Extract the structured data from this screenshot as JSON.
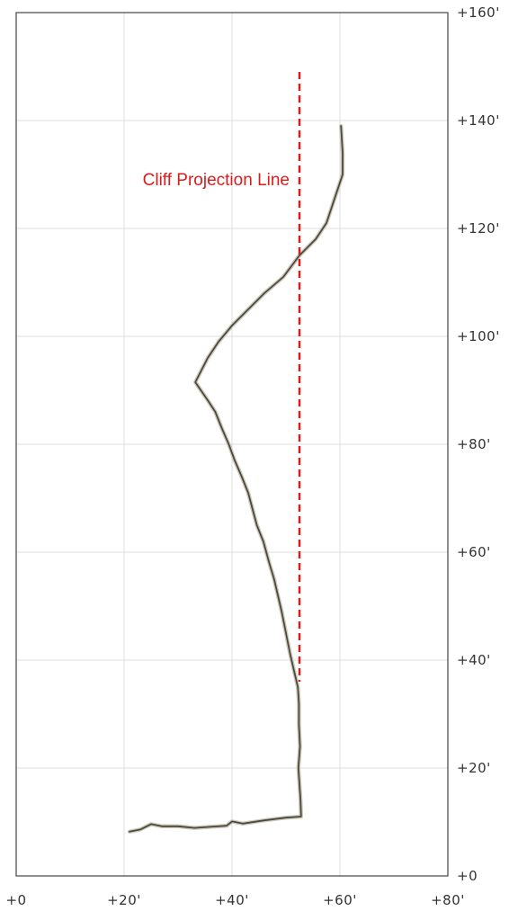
{
  "chart_data": {
    "type": "line",
    "x_ticks": [
      "+0",
      "+20'",
      "+40'",
      "+60'",
      "+80'"
    ],
    "y_ticks": [
      "+0",
      "+20'",
      "+40'",
      "+60'",
      "+80'",
      "+100'",
      "+120'",
      "+140'",
      "+160'"
    ],
    "xlim": [
      0,
      80
    ],
    "ylim": [
      0,
      160
    ],
    "grid": true,
    "series": [
      {
        "color": "#4a4a40",
        "points": [
          [
            21,
            8.2
          ],
          [
            23,
            8.6
          ],
          [
            25,
            9.6
          ],
          [
            27,
            9.2
          ],
          [
            30,
            9.2
          ],
          [
            33,
            8.9
          ],
          [
            36,
            9.1
          ],
          [
            39,
            9.3
          ],
          [
            40,
            10.1
          ],
          [
            42,
            9.7
          ],
          [
            46,
            10.3
          ],
          [
            50,
            10.8
          ],
          [
            52.8,
            11.0
          ],
          [
            52.7,
            14
          ],
          [
            52.5,
            17
          ],
          [
            52.3,
            20
          ],
          [
            52.6,
            24
          ],
          [
            52.4,
            28
          ],
          [
            52.4,
            32
          ],
          [
            52.2,
            35
          ],
          [
            51.5,
            38
          ],
          [
            50.8,
            41
          ],
          [
            50.0,
            45
          ],
          [
            49.2,
            49
          ],
          [
            48.5,
            52
          ],
          [
            47.8,
            55
          ],
          [
            46.9,
            58
          ],
          [
            45.8,
            62
          ],
          [
            44.6,
            65
          ],
          [
            43.8,
            68
          ],
          [
            43.0,
            71
          ],
          [
            41.8,
            74
          ],
          [
            40.5,
            77
          ],
          [
            39.4,
            80
          ],
          [
            38.1,
            83
          ],
          [
            36.9,
            86
          ],
          [
            35.6,
            88
          ],
          [
            33.2,
            91.5
          ],
          [
            35.5,
            96
          ],
          [
            37.5,
            99
          ],
          [
            40,
            102
          ],
          [
            43,
            105
          ],
          [
            46,
            108
          ],
          [
            49.5,
            111
          ],
          [
            52.5,
            115
          ],
          [
            55.5,
            118
          ],
          [
            57.5,
            121
          ],
          [
            58.5,
            124
          ],
          [
            59.5,
            127
          ],
          [
            60.5,
            130
          ],
          [
            60.5,
            134
          ],
          [
            60.2,
            139
          ]
        ]
      }
    ],
    "reference_line": {
      "label": "Cliff Projection Line",
      "x": 52.5,
      "y_start": 36,
      "y_end": 149,
      "color": "#d91c1c"
    }
  }
}
